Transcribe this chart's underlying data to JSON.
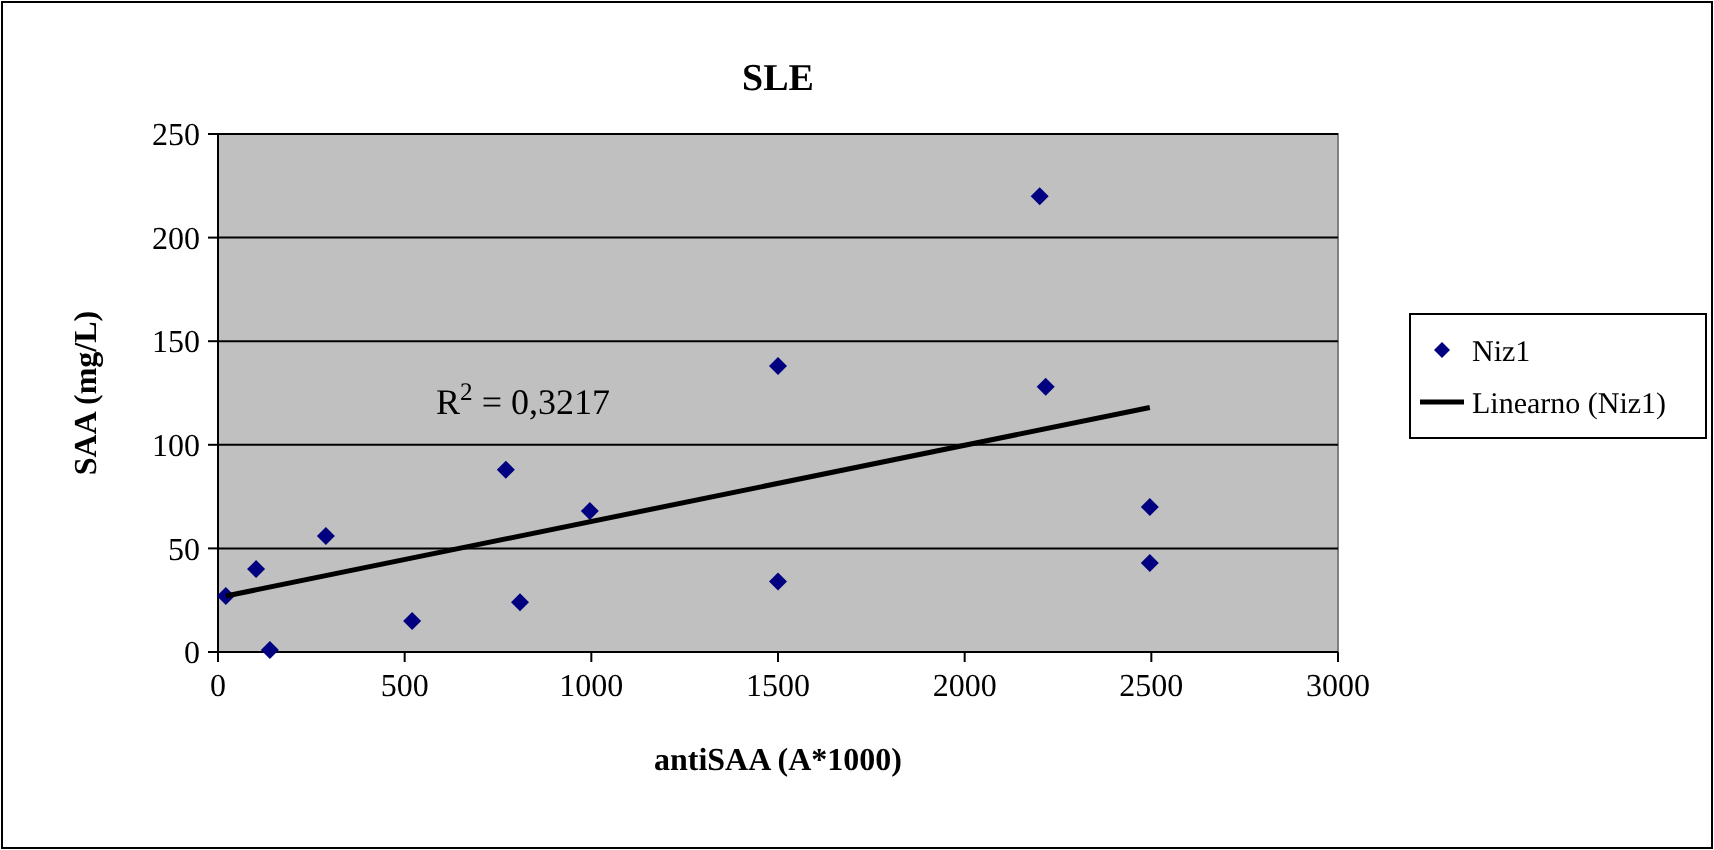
{
  "chart_data": {
    "type": "scatter",
    "title": "SLE",
    "xlabel": "antiSAA (A*1000)",
    "ylabel": "SAA (mg/L)",
    "xlim": [
      0,
      3000
    ],
    "xticks": [
      0,
      500,
      1000,
      1500,
      2000,
      2500,
      3000
    ],
    "ylim": [
      0,
      250
    ],
    "yticks": [
      0,
      50,
      100,
      150,
      200,
      250
    ],
    "grid": "y",
    "legend": "right",
    "marker": "diamond",
    "annotations": [
      "R$^{2}$ = 0,3217"
    ],
    "series": [
      {
        "name": "Niz1",
        "color": "#000080",
        "x": [
          21,
          102,
          139,
          289,
          520,
          771,
          809,
          996,
          1500,
          1500,
          2201,
          2217,
          2496,
          2496
        ],
        "values": [
          27,
          40,
          1,
          56,
          15,
          88,
          24,
          68,
          34,
          138,
          220,
          128,
          70,
          43
        ]
      },
      {
        "name": "Linearno (Niz1)",
        "type": "line",
        "color": "#000000",
        "marker": "none",
        "line_style": "solid",
        "x": [
          21,
          2496
        ],
        "values": [
          27,
          118
        ]
      }
    ]
  }
}
